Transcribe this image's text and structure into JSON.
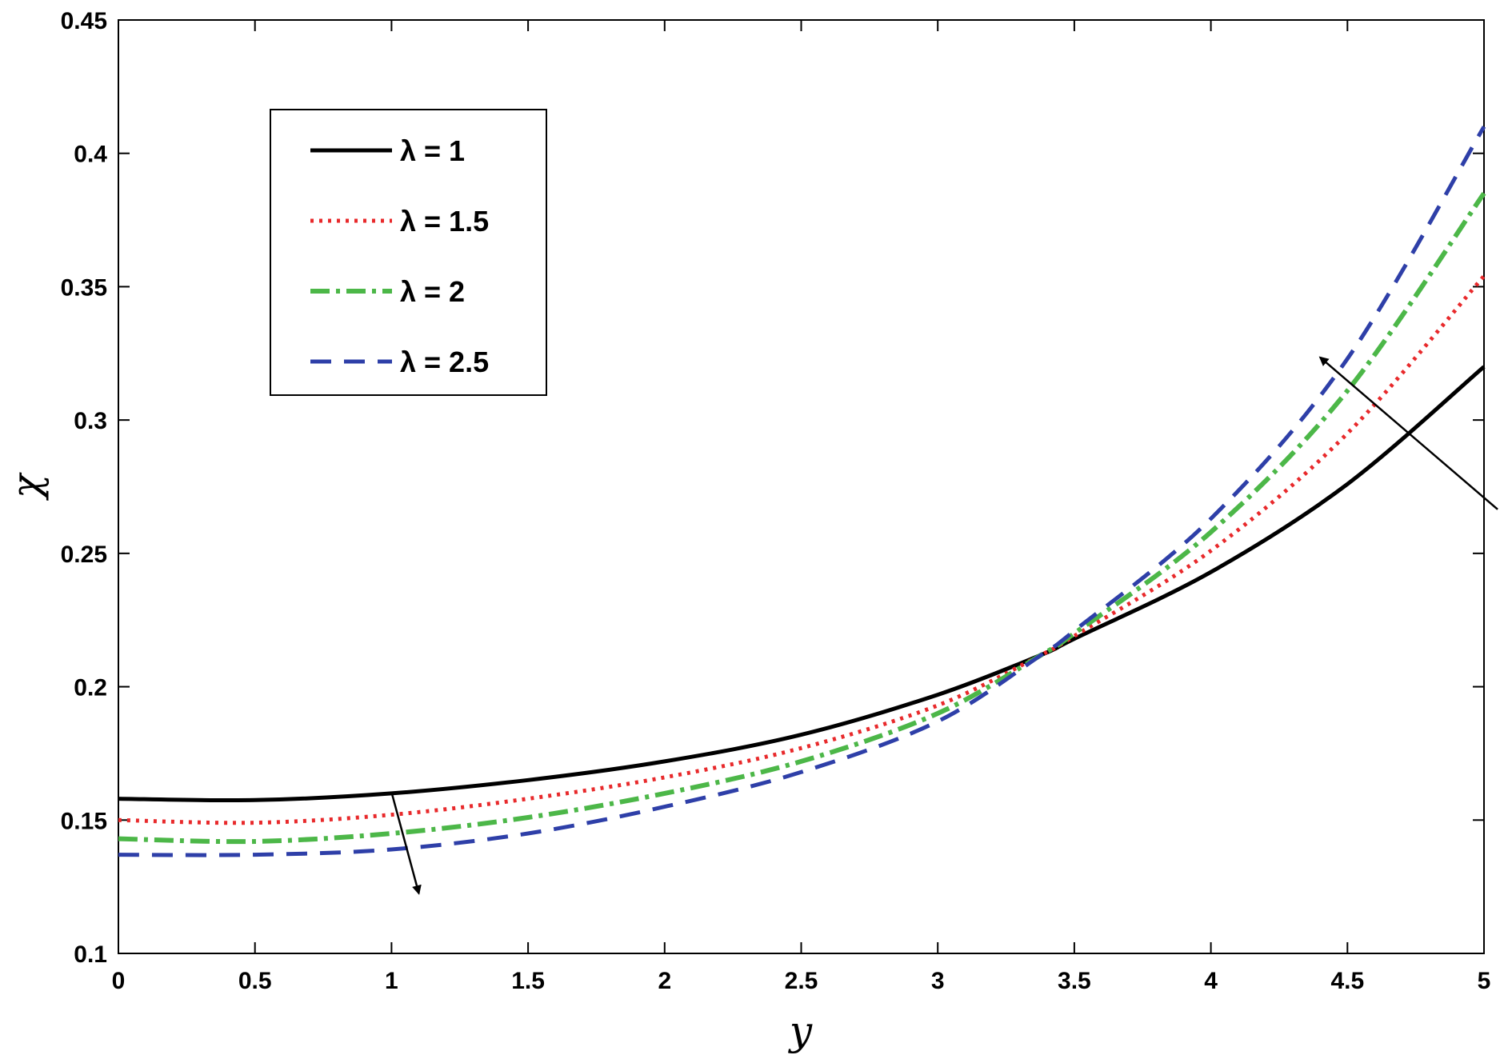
{
  "chart_data": {
    "type": "line",
    "xlabel": "y",
    "ylabel": "χ",
    "xlim": [
      0,
      5
    ],
    "ylim": [
      0.1,
      0.45
    ],
    "x_ticks": [
      "0",
      "0.5",
      "1",
      "1.5",
      "2",
      "2.5",
      "3",
      "3.5",
      "4",
      "4.5",
      "5"
    ],
    "y_ticks": [
      "0.1",
      "0.15",
      "0.2",
      "0.25",
      "0.3",
      "0.35",
      "0.4",
      "0.45"
    ],
    "grid": false,
    "legend_position": "top-left",
    "x": [
      0,
      0.5,
      1,
      1.5,
      2,
      2.5,
      3,
      3.38,
      3.5,
      4,
      4.5,
      5
    ],
    "series": [
      {
        "name": "λ = 1",
        "color": "#000000",
        "style": "solid",
        "values": [
          0.158,
          0.1575,
          0.16,
          0.165,
          0.172,
          0.182,
          0.197,
          0.212,
          0.218,
          0.243,
          0.276,
          0.32
        ]
      },
      {
        "name": "λ = 1.5",
        "color": "#e8292b",
        "style": "dotted",
        "values": [
          0.15,
          0.149,
          0.152,
          0.158,
          0.166,
          0.177,
          0.193,
          0.212,
          0.219,
          0.251,
          0.295,
          0.354
        ]
      },
      {
        "name": "λ = 2",
        "color": "#4cb748",
        "style": "dashdot",
        "values": [
          0.143,
          0.142,
          0.145,
          0.151,
          0.16,
          0.172,
          0.19,
          0.212,
          0.22,
          0.258,
          0.311,
          0.385
        ]
      },
      {
        "name": "λ = 2.5",
        "color": "#2e3fa8",
        "style": "dashed",
        "values": [
          0.137,
          0.137,
          0.139,
          0.145,
          0.155,
          0.168,
          0.187,
          0.212,
          0.221,
          0.263,
          0.323,
          0.41
        ]
      }
    ],
    "annotations": [
      {
        "type": "arrow",
        "from": [
          1.0,
          0.1605
        ],
        "to": [
          1.1,
          0.1225
        ]
      },
      {
        "type": "arrow",
        "from": [
          5.05,
          0.2665
        ],
        "to": [
          4.4,
          0.3235
        ]
      }
    ]
  }
}
